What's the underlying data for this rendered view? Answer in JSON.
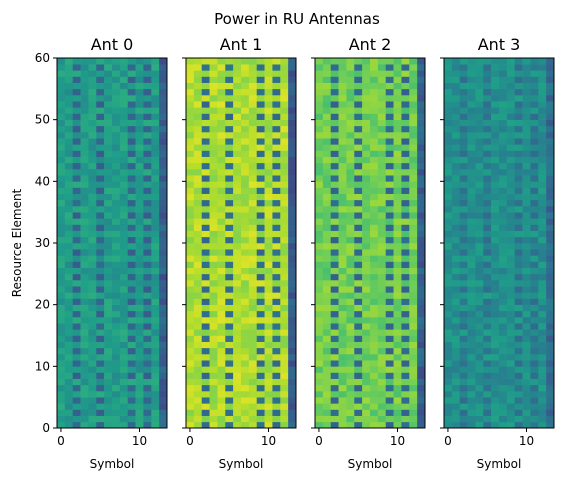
{
  "chart_data": {
    "type": "heatmap",
    "title": "Power in RU Antennas",
    "ylabel": "Resource Element",
    "xlabel": "Symbol",
    "colormap": "viridis",
    "n_symbols": 14,
    "n_resource_elements": 60,
    "xlim": [
      -0.5,
      13.5
    ],
    "ylim": [
      0,
      60
    ],
    "x_ticks": [
      0,
      10
    ],
    "y_ticks": [
      0,
      10,
      20,
      30,
      40,
      50,
      60
    ],
    "pilot_symbols": [
      2,
      5,
      9,
      11
    ],
    "pilot_rows_period": 2,
    "panels": [
      {
        "name": "Ant 0",
        "base_level": 0.55,
        "last_symbol_level": 0.3,
        "pilot_level": 0.32
      },
      {
        "name": "Ant 1",
        "base_level": 0.88,
        "last_symbol_level": 0.28,
        "pilot_level": 0.35
      },
      {
        "name": "Ant 2",
        "base_level": 0.78,
        "last_symbol_level": 0.3,
        "pilot_level": 0.33
      },
      {
        "name": "Ant 3",
        "base_level": 0.5,
        "last_symbol_level": 0.35,
        "pilot_level": 0.38
      }
    ]
  }
}
